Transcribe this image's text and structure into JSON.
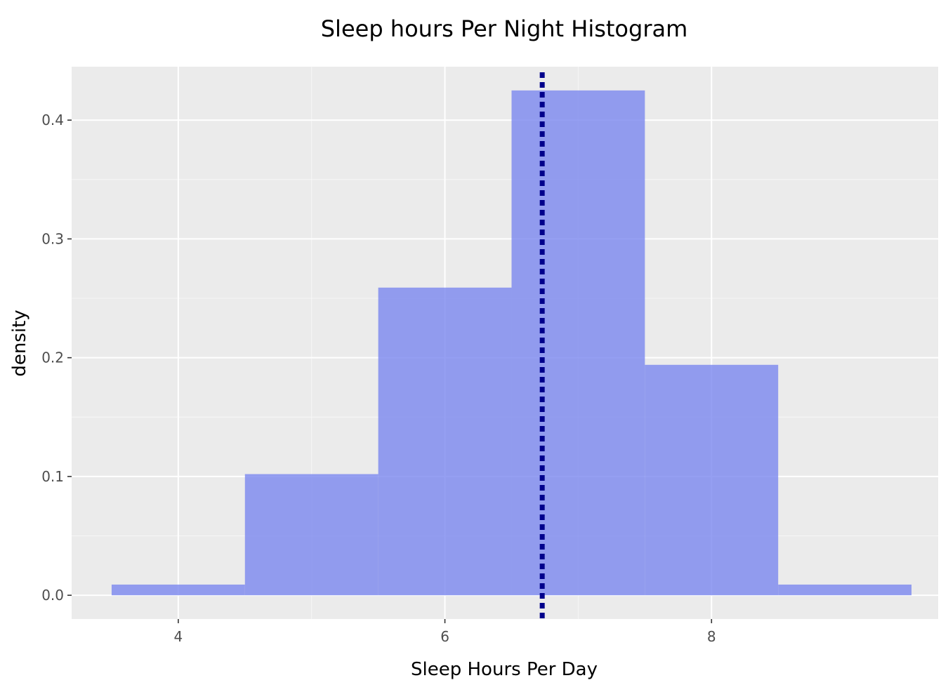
{
  "chart_data": {
    "type": "histogram",
    "title": "Sleep hours Per Night Histogram",
    "xlabel": "Sleep Hours Per Day",
    "ylabel": "density",
    "xlim": [
      3.2,
      9.7
    ],
    "ylim": [
      -0.02,
      0.445
    ],
    "x_ticks": [
      4,
      6,
      8
    ],
    "y_ticks": [
      0.0,
      0.1,
      0.2,
      0.3,
      0.4
    ],
    "bin_width": 1,
    "bins": [
      {
        "x_min": 3.5,
        "x_max": 4.5,
        "density": 0.009
      },
      {
        "x_min": 4.5,
        "x_max": 5.5,
        "density": 0.102
      },
      {
        "x_min": 5.5,
        "x_max": 6.5,
        "density": 0.259
      },
      {
        "x_min": 6.5,
        "x_max": 7.5,
        "density": 0.425
      },
      {
        "x_min": 7.5,
        "x_max": 8.5,
        "density": 0.194
      },
      {
        "x_min": 8.5,
        "x_max": 9.5,
        "density": 0.009
      }
    ],
    "reference_line": {
      "x": 6.73,
      "style": "dotted"
    },
    "colors": {
      "panel_background": "#ebebeb",
      "bar_fill": "#7b87ef",
      "reference_line": "#00008b"
    },
    "grid": true,
    "legend": false
  }
}
